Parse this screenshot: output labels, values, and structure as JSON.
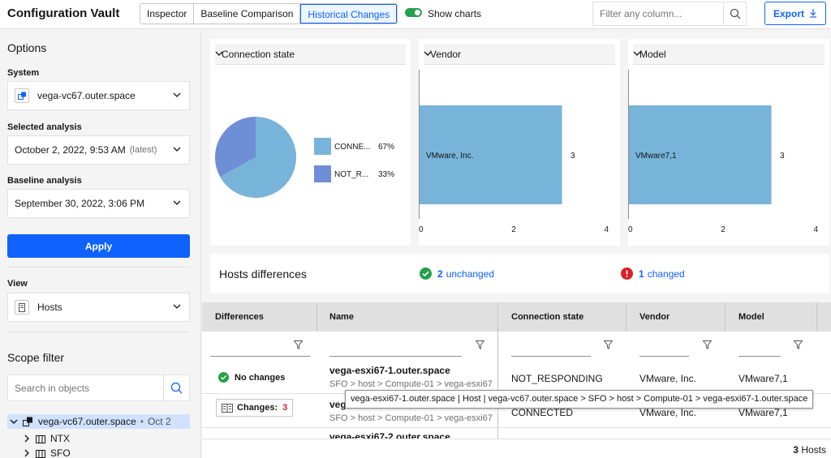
{
  "app": {
    "title": "Configuration Vault"
  },
  "header": {
    "tabs": [
      {
        "label": "Inspector",
        "active": false
      },
      {
        "label": "Baseline Comparison",
        "active": false
      },
      {
        "label": "Historical Changes",
        "active": true
      }
    ],
    "show_charts": {
      "label": "Show charts",
      "enabled": true
    },
    "filter": {
      "placeholder": "Filter any column..."
    },
    "export_label": "Export"
  },
  "sidebar": {
    "title": "Options",
    "system": {
      "label": "System",
      "value": "vega-vc67.outer.space"
    },
    "selected_analysis": {
      "label": "Selected analysis",
      "value": "October 2, 2022, 9:53 AM",
      "tag": "(latest)"
    },
    "baseline_analysis": {
      "label": "Baseline analysis",
      "value": "September 30, 2022, 3:06 PM"
    },
    "apply_label": "Apply",
    "view": {
      "label": "View",
      "value": "Hosts"
    },
    "scope_filter": {
      "title": "Scope filter",
      "placeholder": "Search in objects",
      "tree": {
        "root": {
          "label": "vega-vc67.outer.space",
          "date": "Oct 2"
        },
        "children": [
          {
            "label": "NTX"
          },
          {
            "label": "SFO"
          }
        ]
      }
    }
  },
  "charts": {
    "connection": {
      "select_label": "Connection state"
    },
    "vendor": {
      "select_label": "Vendor"
    },
    "model": {
      "select_label": "Model"
    }
  },
  "chart_data": [
    {
      "type": "pie",
      "categories": [
        "CONNE...",
        "NOT_R..."
      ],
      "values": [
        67,
        33
      ],
      "value_labels": [
        "67%",
        "33%"
      ],
      "colors": [
        "#78b3d9",
        "#6e8fd6"
      ],
      "legend_position": "right"
    },
    {
      "type": "bar",
      "orientation": "horizontal",
      "categories": [
        "VMware, Inc."
      ],
      "values": [
        3
      ],
      "xlim": [
        0,
        4
      ],
      "xticks": [
        0,
        2,
        4
      ],
      "color": "#78b3d9"
    },
    {
      "type": "bar",
      "orientation": "horizontal",
      "categories": [
        "VMware7,1"
      ],
      "values": [
        3
      ],
      "xlim": [
        0,
        4
      ],
      "xticks": [
        0,
        2,
        4
      ],
      "color": "#78b3d9"
    }
  ],
  "hosts_diff": {
    "title": "Hosts differences",
    "unchanged": {
      "count": "2",
      "label": "unchanged"
    },
    "changed": {
      "count": "1",
      "label": "changed"
    }
  },
  "table": {
    "columns": [
      "Differences",
      "Name",
      "Connection state",
      "Vendor",
      "Model"
    ],
    "rows": [
      {
        "difference": "No changes",
        "name": "vega-esxi67-1.outer.space",
        "path": "SFO > host > Compute-01 > vega-esxi67",
        "connection": "NOT_RESPONDING",
        "vendor": "VMware, Inc.",
        "model": "VMware7,1"
      },
      {
        "difference_label": "Changes:",
        "difference_count": "3",
        "name": "veg",
        "path": "SFO > host > Compute-01 > vega-esxi67",
        "connection": "CONNECTED",
        "vendor": "VMware, Inc.",
        "model": "VMware7,1"
      },
      {
        "name": "vega-esxi67-2.outer.space"
      }
    ],
    "tooltip": "vega-esxi67-1.outer.space | Host | vega-vc67.outer.space > SFO > host > Compute-01 > vega-esxi67-1.outer.space",
    "footer": {
      "count": "3",
      "label": "Hosts"
    }
  },
  "colors": {
    "accent": "#0f62fe",
    "success": "#24a148",
    "danger": "#da1e28",
    "bar": "#78b3d9",
    "pie_secondary": "#6e8fd6"
  }
}
